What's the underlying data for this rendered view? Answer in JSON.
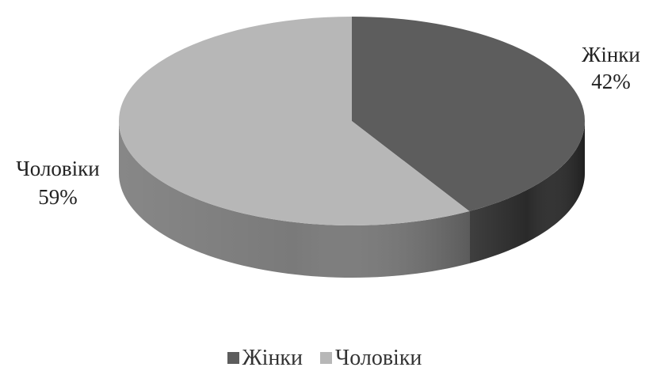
{
  "chart_data": {
    "type": "pie",
    "title": "",
    "style": "3d",
    "slices": [
      {
        "name": "Жінки",
        "value": 42,
        "label": "42%",
        "color": "#5d5d5d",
        "side_color": "#2a2a2a"
      },
      {
        "name": "Чоловіки",
        "value": 59,
        "label": "59%",
        "color": "#b7b7b7",
        "side_color": "#7a7a7a"
      }
    ],
    "legend": {
      "position": "bottom",
      "entries": [
        "Жінки",
        "Чоловіки"
      ]
    }
  }
}
